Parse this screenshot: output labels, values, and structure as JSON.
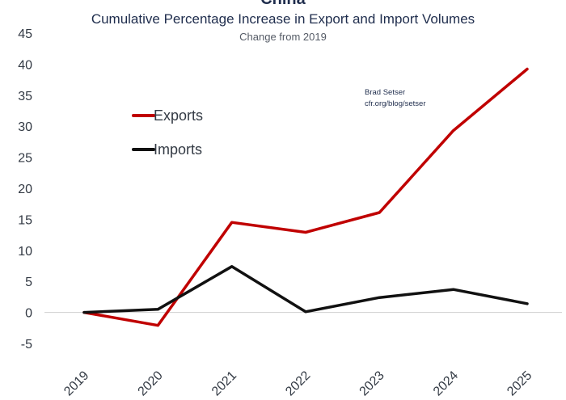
{
  "chart_data": {
    "type": "line",
    "top_title": "China",
    "title": "Cumulative Percentage Increase in Export and Import Volumes",
    "subtitle": "Change from 2019",
    "annotation": [
      "Brad Setser",
      "cfr.org/blog/setser"
    ],
    "categories": [
      "2019",
      "2020",
      "2021",
      "2022",
      "2023",
      "2024",
      "2025"
    ],
    "ylim": [
      -5,
      45
    ],
    "yticks": [
      -5,
      0,
      5,
      10,
      15,
      20,
      25,
      30,
      35,
      40,
      45
    ],
    "xlabel": "",
    "ylabel": "",
    "legend_position": "upper-left",
    "series": [
      {
        "name": "Exports",
        "color": "#c00000",
        "values": [
          0,
          -2.1,
          14.5,
          12.9,
          16.1,
          29.3,
          39.2
        ]
      },
      {
        "name": "Imports",
        "color": "#111111",
        "values": [
          0,
          0.5,
          7.4,
          0.1,
          2.4,
          3.7,
          1.4
        ]
      }
    ]
  }
}
